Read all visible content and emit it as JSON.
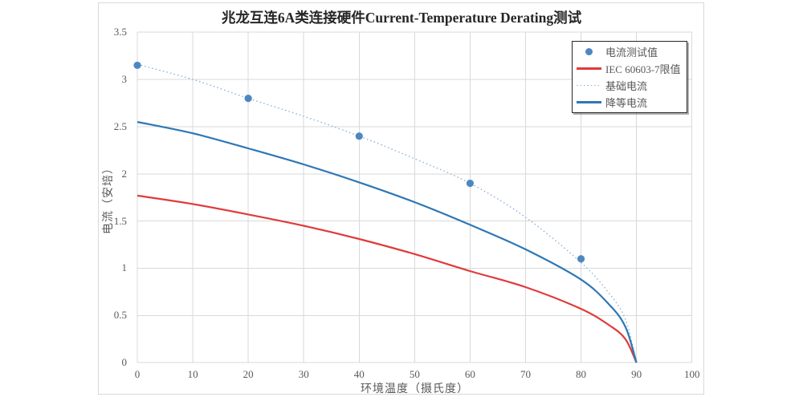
{
  "title": "兆龙互连6A类连接硬件Current-Temperature Derating测试",
  "axes": {
    "x_label": "环境温度（摄氏度）",
    "y_label": "电流（安培）",
    "x_ticks": [
      "0",
      "10",
      "20",
      "30",
      "40",
      "50",
      "60",
      "70",
      "80",
      "90",
      "100"
    ],
    "y_ticks": [
      "3.5",
      "3",
      "2.5",
      "2",
      "1.5",
      "1",
      "0.5",
      "0"
    ]
  },
  "legend": {
    "items": [
      {
        "label": "电流测试值",
        "swatch": "marker",
        "color": "#4d87c3"
      },
      {
        "label": "IEC 60603-7限值",
        "swatch": "line",
        "color": "#e03b3b"
      },
      {
        "label": "基础电流",
        "swatch": "dotted",
        "color": "#93b5da"
      },
      {
        "label": "降等电流",
        "swatch": "line",
        "color": "#2e77b5"
      }
    ]
  },
  "colors": {
    "grid": "#d9d9d9",
    "axis_text": "#595959",
    "title_text": "#262626",
    "frame_border": "#d9d9d9",
    "legend_border": "#262626",
    "marker_blue": "#4d87c3",
    "base_blue_dotted": "#93b5da",
    "derated_blue": "#2e77b5",
    "iec_red": "#e03b3b"
  },
  "chart_data": {
    "type": "line",
    "title": "兆龙互连6A类连接硬件Current-Temperature Derating测试",
    "xlabel": "环境温度（摄氏度）",
    "ylabel": "电流（安培）",
    "xlim": [
      0,
      100
    ],
    "ylim": [
      0,
      3.5
    ],
    "x_tick_step": 10,
    "y_tick_step": 0.5,
    "grid": true,
    "legend_position": "top-right",
    "scatter_series": {
      "key": "measured-current",
      "name": "电流测试值",
      "color": "#4d87c3",
      "points": [
        [
          0,
          3.15
        ],
        [
          20,
          2.8
        ],
        [
          40,
          2.4
        ],
        [
          60,
          1.9
        ],
        [
          80,
          1.1
        ]
      ]
    },
    "line_series": [
      {
        "key": "base-current",
        "name": "基础电流",
        "style": "dotted",
        "color": "#93b5da",
        "points": [
          [
            0,
            3.16
          ],
          [
            10,
            3.0
          ],
          [
            20,
            2.8
          ],
          [
            30,
            2.61
          ],
          [
            40,
            2.4
          ],
          [
            50,
            2.16
          ],
          [
            60,
            1.9
          ],
          [
            70,
            1.54
          ],
          [
            80,
            1.06
          ],
          [
            85,
            0.74
          ],
          [
            88,
            0.46
          ],
          [
            90,
            0
          ]
        ]
      },
      {
        "key": "iec-60603-7-limit",
        "name": "IEC 60603-7限值",
        "style": "solid",
        "color": "#e03b3b",
        "points": [
          [
            0,
            1.77
          ],
          [
            10,
            1.68
          ],
          [
            20,
            1.57
          ],
          [
            30,
            1.45
          ],
          [
            40,
            1.31
          ],
          [
            50,
            1.15
          ],
          [
            60,
            0.97
          ],
          [
            70,
            0.8
          ],
          [
            80,
            0.57
          ],
          [
            85,
            0.4
          ],
          [
            88,
            0.25
          ],
          [
            90,
            0
          ]
        ]
      },
      {
        "key": "derated-current",
        "name": "降等电流",
        "style": "solid",
        "color": "#2e77b5",
        "points": [
          [
            0,
            2.55
          ],
          [
            10,
            2.43
          ],
          [
            20,
            2.27
          ],
          [
            30,
            2.1
          ],
          [
            40,
            1.91
          ],
          [
            50,
            1.7
          ],
          [
            60,
            1.46
          ],
          [
            70,
            1.2
          ],
          [
            80,
            0.88
          ],
          [
            85,
            0.62
          ],
          [
            88,
            0.38
          ],
          [
            90,
            0
          ]
        ]
      }
    ]
  }
}
